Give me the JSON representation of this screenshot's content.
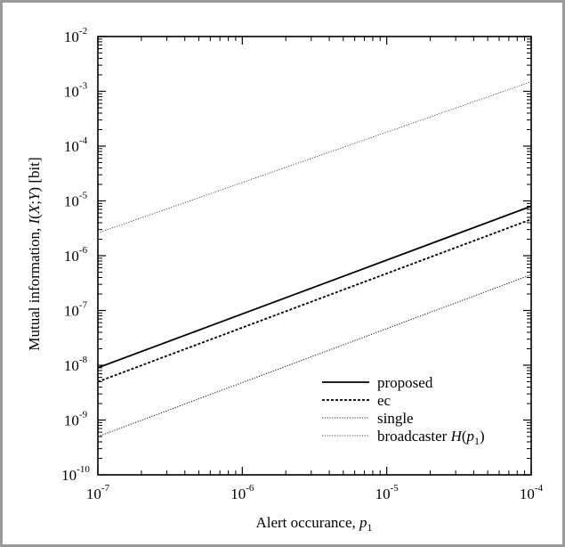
{
  "chart_data": {
    "type": "line",
    "xlabel": "Alert occurance, ",
    "xlabel_var": "p",
    "xlabel_sub": "1",
    "ylabel": "Mutual information, I(X;Y) [bit]",
    "ylabel_parts": [
      "Mutual information, ",
      "I",
      "(",
      "X",
      ";",
      "Y",
      ") [bit]"
    ],
    "x_scale": "log",
    "y_scale": "log",
    "xlim": [
      1e-07,
      0.0001
    ],
    "ylim": [
      1e-10,
      0.01
    ],
    "x_ticks": [
      {
        "value": 1e-07,
        "base": "10",
        "exp": "-7"
      },
      {
        "value": 1e-06,
        "base": "10",
        "exp": "-6"
      },
      {
        "value": 1e-05,
        "base": "10",
        "exp": "-5"
      },
      {
        "value": 0.0001,
        "base": "10",
        "exp": "-4"
      }
    ],
    "y_ticks": [
      {
        "value": 1e-10,
        "base": "10",
        "exp": "-10"
      },
      {
        "value": 1e-09,
        "base": "10",
        "exp": "-9"
      },
      {
        "value": 1e-08,
        "base": "10",
        "exp": "-8"
      },
      {
        "value": 1e-07,
        "base": "10",
        "exp": "-7"
      },
      {
        "value": 1e-06,
        "base": "10",
        "exp": "-6"
      },
      {
        "value": 1e-05,
        "base": "10",
        "exp": "-5"
      },
      {
        "value": 0.0001,
        "base": "10",
        "exp": "-4"
      },
      {
        "value": 0.001,
        "base": "10",
        "exp": "-3"
      },
      {
        "value": 0.01,
        "base": "10",
        "exp": "-2"
      }
    ],
    "grid": false,
    "legend_position": "bottom-right",
    "series": [
      {
        "name": "proposed",
        "x": [
          1e-07,
          0.0001
        ],
        "y": [
          9e-09,
          8e-06
        ],
        "style": "solid",
        "width": 1.8,
        "color": "#000000"
      },
      {
        "name": "ec",
        "x": [
          1e-07,
          0.0001
        ],
        "y": [
          5e-09,
          4.6e-06
        ],
        "style": "dashed",
        "width": 1.8,
        "color": "#000000"
      },
      {
        "name": "single",
        "x": [
          1e-07,
          0.0001
        ],
        "y": [
          5e-10,
          4.5e-07
        ],
        "style": "dotted",
        "width": 1.1,
        "color": "#222222"
      },
      {
        "name": "broadcaster H(p1)",
        "x": [
          1e-07,
          0.0001
        ],
        "y": [
          2.6e-06,
          0.0015
        ],
        "style": "dotted",
        "width": 0.9,
        "color": "#444444"
      }
    ],
    "legend_labels": [
      {
        "text": "proposed"
      },
      {
        "text": "ec"
      },
      {
        "text": "single"
      },
      {
        "text": "broadcaster ",
        "var": "H",
        "open": "(",
        "sub_var": "p",
        "sub": "1",
        "close": ")"
      }
    ]
  }
}
